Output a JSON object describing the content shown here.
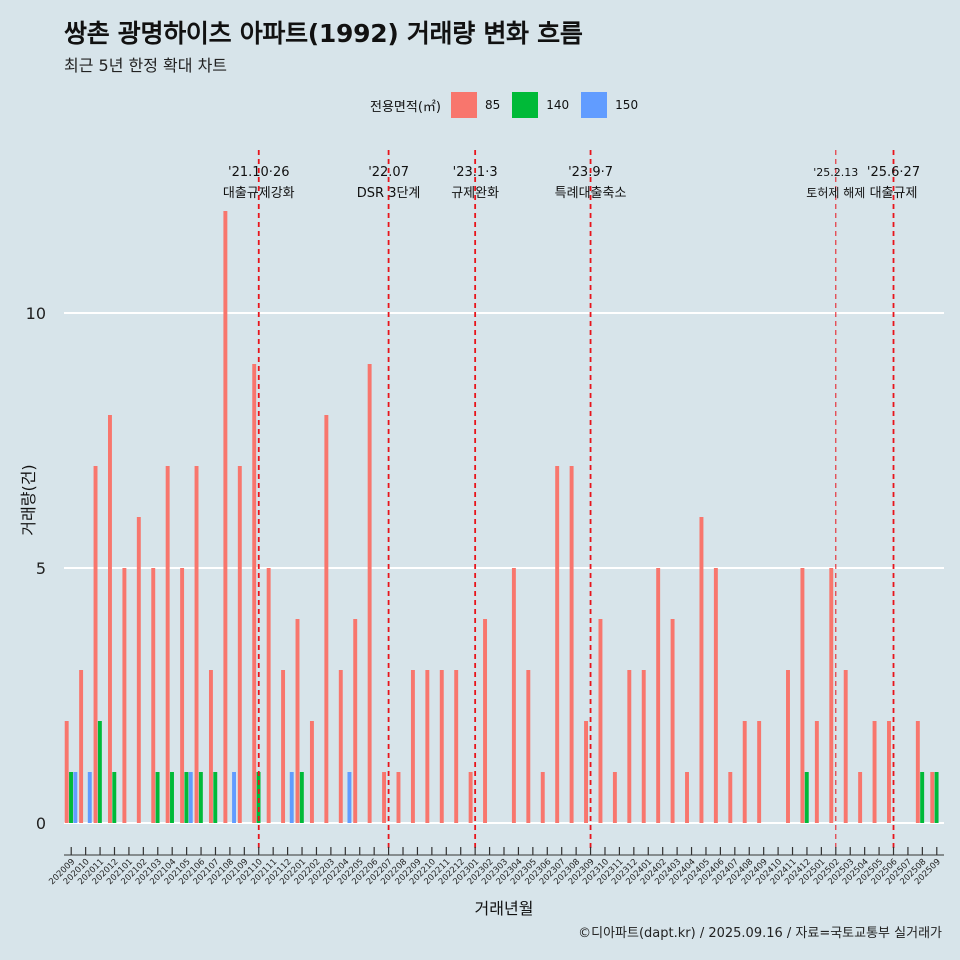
{
  "chart_data": {
    "type": "bar",
    "title": "쌍촌 광명하이츠 아파트(1992) 거래량 변화 흐름",
    "subtitle": "최근 5년 한정 확대 차트",
    "xlabel": "거래년월",
    "ylabel": "거래량(건)",
    "ylim": [
      0,
      13
    ],
    "yticks": [
      0,
      5,
      10
    ],
    "grid": "horizontal",
    "legend_title": "전용면적(㎡)",
    "legend_placement": "top",
    "categories": [
      "202009",
      "202010",
      "202011",
      "202012",
      "202101",
      "202102",
      "202103",
      "202104",
      "202105",
      "202106",
      "202107",
      "202108",
      "202109",
      "202110",
      "202111",
      "202112",
      "202201",
      "202202",
      "202203",
      "202204",
      "202205",
      "202206",
      "202207",
      "202208",
      "202209",
      "202210",
      "202211",
      "202212",
      "202301",
      "202302",
      "202303",
      "202304",
      "202305",
      "202306",
      "202307",
      "202308",
      "202309",
      "202310",
      "202311",
      "202312",
      "202401",
      "202402",
      "202403",
      "202404",
      "202405",
      "202406",
      "202407",
      "202408",
      "202409",
      "202410",
      "202411",
      "202412",
      "202501",
      "202502",
      "202503",
      "202504",
      "202505",
      "202506",
      "202507",
      "202508",
      "202509"
    ],
    "series": [
      {
        "name": "85",
        "color": "#f8766d",
        "values": [
          2,
          3,
          7,
          8,
          5,
          6,
          5,
          7,
          5,
          7,
          3,
          12,
          7,
          9,
          5,
          3,
          4,
          2,
          8,
          3,
          4,
          9,
          1,
          1,
          3,
          3,
          3,
          3,
          1,
          4,
          0,
          5,
          3,
          1,
          7,
          7,
          2,
          4,
          1,
          3,
          3,
          5,
          4,
          1,
          6,
          5,
          1,
          2,
          2,
          0,
          3,
          5,
          2,
          5,
          3,
          1,
          2,
          2,
          0,
          2,
          1
        ]
      },
      {
        "name": "140",
        "color": "#00ba38",
        "values": [
          1,
          0,
          2,
          1,
          0,
          0,
          1,
          1,
          1,
          1,
          1,
          0,
          0,
          1,
          0,
          0,
          1,
          0,
          0,
          0,
          0,
          0,
          0,
          0,
          0,
          0,
          0,
          0,
          0,
          0,
          0,
          0,
          0,
          0,
          0,
          0,
          0,
          0,
          0,
          0,
          0,
          0,
          0,
          0,
          0,
          0,
          0,
          0,
          0,
          0,
          0,
          1,
          0,
          0,
          0,
          0,
          0,
          0,
          0,
          1,
          1
        ]
      },
      {
        "name": "150",
        "color": "#619cff",
        "values": [
          1,
          1,
          0,
          0,
          0,
          0,
          0,
          0,
          1,
          0,
          0,
          1,
          0,
          0,
          0,
          1,
          0,
          0,
          0,
          1,
          0,
          0,
          0,
          0,
          0,
          0,
          0,
          0,
          0,
          0,
          0,
          0,
          0,
          0,
          0,
          0,
          0,
          0,
          0,
          0,
          0,
          0,
          0,
          0,
          0,
          0,
          0,
          0,
          0,
          0,
          0,
          0,
          0,
          0,
          0,
          0,
          0,
          0,
          0,
          0,
          0
        ]
      }
    ],
    "events": [
      {
        "index": 13,
        "date": "'21.10·26",
        "label": "대출규제강화",
        "style": "bold"
      },
      {
        "index": 22,
        "date": "'22.07",
        "label": "DSR 3단계",
        "style": "bold"
      },
      {
        "index": 28,
        "date": "'23.1·3",
        "label": "규제완화",
        "style": "bold"
      },
      {
        "index": 36,
        "date": "'23.9·7",
        "label": "특례대출축소",
        "style": "bold"
      },
      {
        "index": 53,
        "date": "'25.2.13",
        "label": "토허제 해제",
        "style": "thin"
      },
      {
        "index": 57,
        "date": "'25.6·27",
        "label": "대출규제",
        "style": "bold"
      }
    ]
  },
  "caption": "©디아파트(dapt.kr) / 2025.09.16 / 자료=국토교통부 실거래가"
}
